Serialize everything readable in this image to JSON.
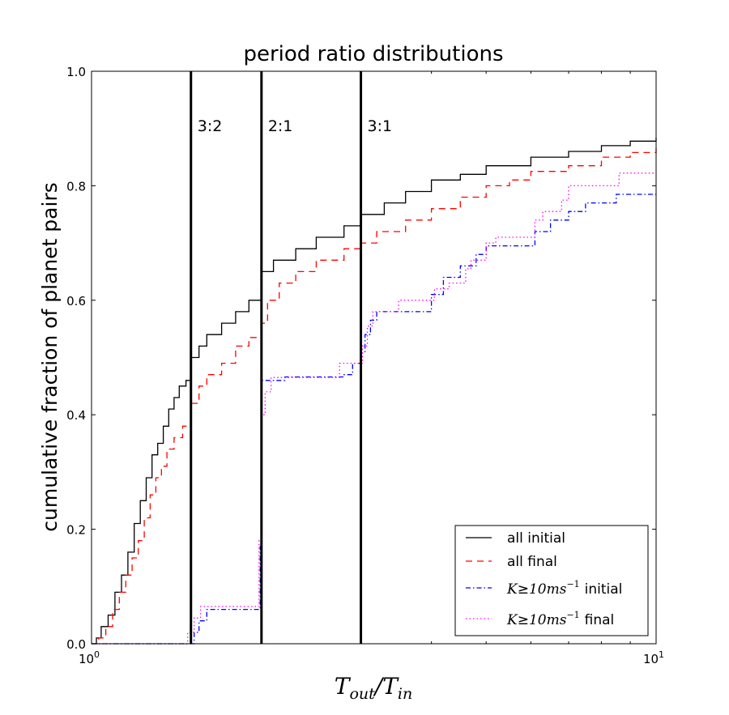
{
  "chart_data": {
    "type": "line",
    "title": "period ratio distributions",
    "xlabel": "T_out/T_in",
    "xlabel_parts": {
      "t1": "T",
      "s1": "out",
      "slash": "/",
      "t2": "T",
      "s2": "in"
    },
    "ylabel": "cumulative fraction of planet pairs",
    "xscale": "log",
    "xlim": [
      1,
      10
    ],
    "ylim": [
      0,
      1
    ],
    "x_ticks": [
      {
        "value": 1,
        "base": "10",
        "exp": "0"
      },
      {
        "value": 10,
        "base": "10",
        "exp": "1"
      }
    ],
    "y_ticks": [
      {
        "value": 0.0,
        "label": "0.0"
      },
      {
        "value": 0.2,
        "label": "0.2"
      },
      {
        "value": 0.4,
        "label": "0.4"
      },
      {
        "value": 0.6,
        "label": "0.6"
      },
      {
        "value": 0.8,
        "label": "0.8"
      },
      {
        "value": 1.0,
        "label": "1.0"
      }
    ],
    "resonances": [
      {
        "x": 1.5,
        "label": "3:2",
        "label_y": 0.905
      },
      {
        "x": 2.0,
        "label": "2:1",
        "label_y": 0.905
      },
      {
        "x": 3.0,
        "label": "3:1",
        "label_y": 0.905
      }
    ],
    "legend_position": "lower-right",
    "series": [
      {
        "name": "all initial",
        "legend": {
          "text": "all initial"
        },
        "color": "#000000",
        "dash": "",
        "points": [
          [
            1.0,
            0.0
          ],
          [
            1.02,
            0.01
          ],
          [
            1.04,
            0.03
          ],
          [
            1.07,
            0.05
          ],
          [
            1.1,
            0.09
          ],
          [
            1.13,
            0.12
          ],
          [
            1.16,
            0.16
          ],
          [
            1.19,
            0.21
          ],
          [
            1.22,
            0.25
          ],
          [
            1.25,
            0.29
          ],
          [
            1.28,
            0.33
          ],
          [
            1.31,
            0.35
          ],
          [
            1.34,
            0.38
          ],
          [
            1.37,
            0.41
          ],
          [
            1.4,
            0.43
          ],
          [
            1.43,
            0.45
          ],
          [
            1.47,
            0.46
          ],
          [
            1.5,
            0.5
          ],
          [
            1.55,
            0.52
          ],
          [
            1.6,
            0.54
          ],
          [
            1.7,
            0.56
          ],
          [
            1.8,
            0.58
          ],
          [
            1.9,
            0.6
          ],
          [
            2.0,
            0.65
          ],
          [
            2.1,
            0.67
          ],
          [
            2.3,
            0.69
          ],
          [
            2.5,
            0.71
          ],
          [
            2.8,
            0.73
          ],
          [
            3.0,
            0.75
          ],
          [
            3.3,
            0.77
          ],
          [
            3.6,
            0.79
          ],
          [
            4.0,
            0.81
          ],
          [
            4.5,
            0.82
          ],
          [
            5.0,
            0.835
          ],
          [
            6.0,
            0.85
          ],
          [
            7.0,
            0.86
          ],
          [
            8.0,
            0.87
          ],
          [
            9.0,
            0.878
          ],
          [
            10.0,
            0.884
          ]
        ]
      },
      {
        "name": "all final",
        "legend": {
          "text": "all final"
        },
        "color": "#ff0000",
        "dash": "8,6",
        "points": [
          [
            1.0,
            0.0
          ],
          [
            1.03,
            0.01
          ],
          [
            1.06,
            0.03
          ],
          [
            1.09,
            0.06
          ],
          [
            1.12,
            0.09
          ],
          [
            1.15,
            0.12
          ],
          [
            1.18,
            0.15
          ],
          [
            1.21,
            0.18
          ],
          [
            1.24,
            0.22
          ],
          [
            1.27,
            0.26
          ],
          [
            1.3,
            0.29
          ],
          [
            1.33,
            0.31
          ],
          [
            1.36,
            0.34
          ],
          [
            1.4,
            0.36
          ],
          [
            1.45,
            0.38
          ],
          [
            1.5,
            0.42
          ],
          [
            1.55,
            0.45
          ],
          [
            1.6,
            0.47
          ],
          [
            1.7,
            0.49
          ],
          [
            1.8,
            0.52
          ],
          [
            1.9,
            0.535
          ],
          [
            2.0,
            0.56
          ],
          [
            2.05,
            0.6
          ],
          [
            2.15,
            0.63
          ],
          [
            2.3,
            0.65
          ],
          [
            2.5,
            0.67
          ],
          [
            2.8,
            0.69
          ],
          [
            3.0,
            0.7
          ],
          [
            3.2,
            0.72
          ],
          [
            3.6,
            0.74
          ],
          [
            4.0,
            0.76
          ],
          [
            4.5,
            0.78
          ],
          [
            5.0,
            0.8
          ],
          [
            5.5,
            0.81
          ],
          [
            6.0,
            0.825
          ],
          [
            7.0,
            0.835
          ],
          [
            8.0,
            0.85
          ],
          [
            9.0,
            0.858
          ],
          [
            10.0,
            0.866
          ]
        ]
      },
      {
        "name": "K≥10ms⁻¹ initial",
        "legend": {
          "prefix": "K",
          "ge": "≥",
          "num": "10ms",
          "sup": "−1",
          "suffix": "initial"
        },
        "color": "#0000ff",
        "dash": "6,3,1.5,3",
        "points": [
          [
            1.0,
            0.0
          ],
          [
            1.5,
            0.0
          ],
          [
            1.52,
            0.02
          ],
          [
            1.55,
            0.04
          ],
          [
            1.6,
            0.06
          ],
          [
            1.97,
            0.06
          ],
          [
            1.99,
            0.17
          ],
          [
            2.0,
            0.46
          ],
          [
            2.2,
            0.466
          ],
          [
            2.7,
            0.466
          ],
          [
            2.8,
            0.47
          ],
          [
            2.9,
            0.49
          ],
          [
            3.0,
            0.51
          ],
          [
            3.05,
            0.54
          ],
          [
            3.12,
            0.565
          ],
          [
            3.2,
            0.58
          ],
          [
            3.5,
            0.58
          ],
          [
            4.0,
            0.58
          ],
          [
            4.0,
            0.61
          ],
          [
            4.2,
            0.64
          ],
          [
            4.5,
            0.66
          ],
          [
            4.8,
            0.68
          ],
          [
            5.0,
            0.695
          ],
          [
            6.0,
            0.695
          ],
          [
            6.1,
            0.72
          ],
          [
            6.5,
            0.74
          ],
          [
            7.0,
            0.755
          ],
          [
            7.5,
            0.77
          ],
          [
            8.5,
            0.785
          ],
          [
            10.0,
            0.785
          ]
        ]
      },
      {
        "name": "K≥10ms⁻¹ final",
        "legend": {
          "prefix": "K",
          "ge": "≥",
          "num": "10ms",
          "sup": "−1",
          "suffix": "final"
        },
        "color": "#ff00ff",
        "dash": "1.5,3",
        "points": [
          [
            1.0,
            0.0
          ],
          [
            1.45,
            0.0
          ],
          [
            1.48,
            0.02
          ],
          [
            1.52,
            0.045
          ],
          [
            1.56,
            0.065
          ],
          [
            1.97,
            0.065
          ],
          [
            1.98,
            0.18
          ],
          [
            2.0,
            0.4
          ],
          [
            2.03,
            0.44
          ],
          [
            2.08,
            0.465
          ],
          [
            2.3,
            0.465
          ],
          [
            2.7,
            0.465
          ],
          [
            2.75,
            0.49
          ],
          [
            3.0,
            0.49
          ],
          [
            3.02,
            0.52
          ],
          [
            3.08,
            0.555
          ],
          [
            3.15,
            0.58
          ],
          [
            3.5,
            0.6
          ],
          [
            4.0,
            0.6
          ],
          [
            4.05,
            0.62
          ],
          [
            4.3,
            0.63
          ],
          [
            4.6,
            0.655
          ],
          [
            4.7,
            0.67
          ],
          [
            5.0,
            0.7
          ],
          [
            5.2,
            0.71
          ],
          [
            6.0,
            0.71
          ],
          [
            6.1,
            0.74
          ],
          [
            6.3,
            0.755
          ],
          [
            6.8,
            0.775
          ],
          [
            7.0,
            0.8
          ],
          [
            8.5,
            0.8
          ],
          [
            8.6,
            0.822
          ],
          [
            10.0,
            0.822
          ]
        ]
      }
    ]
  }
}
